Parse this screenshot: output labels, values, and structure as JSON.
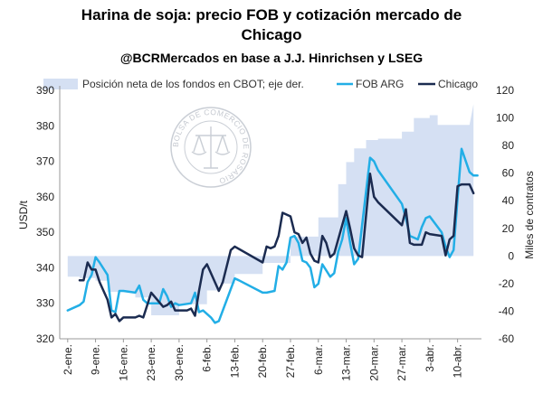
{
  "title_line1": "Harina de soja: precio FOB y cotización mercado de",
  "title_line2": "Chicago",
  "subtitle": "@BCRMercados en base a J.J. Hinrichsen y LSEG",
  "watermark_text": "BOLSA DE COMERCIO DE ROSARIO",
  "chart_data": {
    "type": "line",
    "xlabel": "",
    "ylabel": "USD/t",
    "ylabel_right": "Miles de contratos",
    "ylim": [
      320,
      390
    ],
    "y_ticks": [
      320,
      330,
      340,
      350,
      360,
      370,
      380,
      390
    ],
    "ylim_right": [
      -60,
      120
    ],
    "y_ticks_right": [
      -60,
      -40,
      -20,
      0,
      20,
      40,
      60,
      80,
      100,
      120
    ],
    "x_ticks": [
      "2-ene.",
      "9-ene.",
      "16-ene.",
      "23-ene.",
      "30-ene.",
      "6-feb.",
      "13-feb.",
      "20-feb.",
      "27-feb.",
      "6-mar.",
      "13-mar.",
      "20-mar.",
      "27-mar.",
      "3-abr.",
      "10-abr."
    ],
    "x_tick_days": [
      2,
      9,
      16,
      23,
      30,
      37,
      44,
      51,
      58,
      65,
      72,
      79,
      86,
      93,
      100
    ],
    "grid": false,
    "legend_position": "top",
    "series": [
      {
        "name": "Posición neta de los fondos en CBOT; eje der.",
        "type": "area",
        "axis": "right",
        "color": "#d5e0f3",
        "points": [
          [
            2,
            -15
          ],
          [
            5,
            -15
          ],
          [
            5,
            -16
          ],
          [
            9,
            -16
          ],
          [
            9,
            -18
          ],
          [
            12,
            -18
          ],
          [
            12,
            -26
          ],
          [
            19,
            -26
          ],
          [
            19,
            -30
          ],
          [
            23,
            -30
          ],
          [
            23,
            -43
          ],
          [
            30,
            -43
          ],
          [
            30,
            -35
          ],
          [
            37,
            -35
          ],
          [
            37,
            -25
          ],
          [
            40,
            -25
          ],
          [
            40,
            -20
          ],
          [
            44,
            -20
          ],
          [
            44,
            -13
          ],
          [
            51,
            -13
          ],
          [
            51,
            -5
          ],
          [
            58,
            -5
          ],
          [
            58,
            14
          ],
          [
            65,
            14
          ],
          [
            65,
            28
          ],
          [
            70,
            28
          ],
          [
            70,
            52
          ],
          [
            72,
            52
          ],
          [
            72,
            68
          ],
          [
            74,
            68
          ],
          [
            74,
            78
          ],
          [
            77,
            78
          ],
          [
            77,
            84
          ],
          [
            80,
            84
          ],
          [
            80,
            85
          ],
          [
            86,
            85
          ],
          [
            86,
            90
          ],
          [
            89,
            90
          ],
          [
            89,
            100
          ],
          [
            93,
            100
          ],
          [
            93,
            102
          ],
          [
            95,
            102
          ],
          [
            95,
            95
          ],
          [
            101,
            95
          ],
          [
            101,
            95
          ],
          [
            103,
            95
          ],
          [
            104,
            110
          ]
        ]
      },
      {
        "name": "FOB ARG",
        "type": "line",
        "axis": "left",
        "color": "#22aee6",
        "points": [
          [
            2,
            328
          ],
          [
            5,
            329.5
          ],
          [
            6,
            330.5
          ],
          [
            7,
            336
          ],
          [
            8,
            338
          ],
          [
            9,
            343
          ],
          [
            10,
            341.5
          ],
          [
            12,
            338
          ],
          [
            13,
            328
          ],
          [
            14,
            327.5
          ],
          [
            15,
            333.5
          ],
          [
            16,
            333.5
          ],
          [
            19,
            333
          ],
          [
            20,
            335
          ],
          [
            21,
            331
          ],
          [
            22,
            330
          ],
          [
            23,
            330
          ],
          [
            25,
            330
          ],
          [
            26,
            334
          ],
          [
            27,
            332
          ],
          [
            28,
            329
          ],
          [
            29,
            330
          ],
          [
            30,
            329.5
          ],
          [
            33,
            330
          ],
          [
            34,
            333
          ],
          [
            35,
            327.5
          ],
          [
            36,
            328
          ],
          [
            38,
            326
          ],
          [
            39,
            324.5
          ],
          [
            40,
            325
          ],
          [
            44,
            337
          ],
          [
            45,
            336.5
          ],
          [
            51,
            333
          ],
          [
            52,
            333
          ],
          [
            54,
            333.5
          ],
          [
            55,
            340.5
          ],
          [
            56,
            339.5
          ],
          [
            57,
            341.5
          ],
          [
            58,
            348.5
          ],
          [
            59,
            349
          ],
          [
            60,
            347
          ],
          [
            61,
            342
          ],
          [
            62,
            341.5
          ],
          [
            63,
            340
          ],
          [
            64,
            334.5
          ],
          [
            65,
            335.5
          ],
          [
            66,
            341
          ],
          [
            68,
            337.5
          ],
          [
            69,
            338.5
          ],
          [
            70,
            344.5
          ],
          [
            71,
            348
          ],
          [
            72,
            354
          ],
          [
            73,
            347
          ],
          [
            74,
            341
          ],
          [
            75,
            342.5
          ],
          [
            76,
            352
          ],
          [
            78,
            371
          ],
          [
            79,
            370
          ],
          [
            80,
            367.5
          ],
          [
            86,
            358
          ],
          [
            87,
            354
          ],
          [
            88,
            349
          ],
          [
            89,
            348.5
          ],
          [
            90,
            348
          ],
          [
            91,
            351.5
          ],
          [
            92,
            354
          ],
          [
            93,
            354.5
          ],
          [
            96,
            350
          ],
          [
            97,
            346
          ],
          [
            98,
            343
          ],
          [
            99,
            345
          ],
          [
            100,
            359.5
          ],
          [
            101,
            373.5
          ],
          [
            103,
            367
          ],
          [
            104,
            366
          ],
          [
            105,
            366
          ]
        ]
      },
      {
        "name": "Chicago",
        "type": "line",
        "axis": "left",
        "color": "#1b2b50",
        "points": [
          [
            5,
            336.5
          ],
          [
            6,
            336.5
          ],
          [
            7,
            341.5
          ],
          [
            8,
            339.5
          ],
          [
            9,
            339.5
          ],
          [
            10,
            336
          ],
          [
            12,
            331
          ],
          [
            13,
            326
          ],
          [
            14,
            327
          ],
          [
            15,
            325
          ],
          [
            16,
            326
          ],
          [
            19,
            326
          ],
          [
            20,
            326.5
          ],
          [
            21,
            326
          ],
          [
            22,
            329.5
          ],
          [
            23,
            333
          ],
          [
            26,
            329
          ],
          [
            27,
            329.5
          ],
          [
            28,
            330.5
          ],
          [
            29,
            328
          ],
          [
            30,
            328
          ],
          [
            32,
            328
          ],
          [
            33,
            328.5
          ],
          [
            34,
            326.5
          ],
          [
            35,
            333.5
          ],
          [
            36,
            339.5
          ],
          [
            37,
            341
          ],
          [
            40,
            333.5
          ],
          [
            41,
            336
          ],
          [
            43,
            345
          ],
          [
            44,
            346
          ],
          [
            51,
            341.5
          ],
          [
            52,
            346
          ],
          [
            53,
            345.5
          ],
          [
            54,
            346
          ],
          [
            55,
            349
          ],
          [
            56,
            355.5
          ],
          [
            57,
            355
          ],
          [
            58,
            354.5
          ],
          [
            59,
            350
          ],
          [
            60,
            349.5
          ],
          [
            61,
            347
          ],
          [
            62,
            348.5
          ],
          [
            63,
            344
          ],
          [
            64,
            342
          ],
          [
            65,
            341.5
          ],
          [
            66,
            349
          ],
          [
            67,
            347
          ],
          [
            68,
            343
          ],
          [
            69,
            344
          ],
          [
            70,
            348
          ],
          [
            71,
            352
          ],
          [
            72,
            356
          ],
          [
            73,
            351
          ],
          [
            74,
            345.5
          ],
          [
            75,
            343.5
          ],
          [
            76,
            343
          ],
          [
            78,
            366.5
          ],
          [
            79,
            360
          ],
          [
            80,
            358.5
          ],
          [
            86,
            352
          ],
          [
            87,
            356.5
          ],
          [
            88,
            347
          ],
          [
            89,
            346.5
          ],
          [
            91,
            346.5
          ],
          [
            92,
            350
          ],
          [
            93,
            349.5
          ],
          [
            96,
            349
          ],
          [
            97,
            343.5
          ],
          [
            98,
            348
          ],
          [
            99,
            349
          ],
          [
            100,
            363
          ],
          [
            101,
            363.5
          ],
          [
            103,
            363.5
          ],
          [
            104,
            361
          ]
        ]
      }
    ]
  }
}
